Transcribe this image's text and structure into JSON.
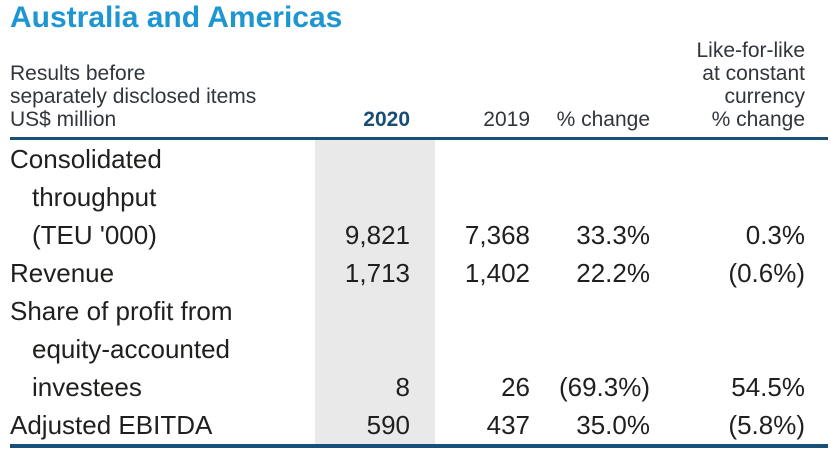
{
  "title": "Australia and Americas",
  "colors": {
    "title_blue": "#1e96d2",
    "rule_navy": "#1b4f74",
    "header_2020_navy": "#184e74",
    "highlight_gray": "#e9e9e9",
    "body_text": "#1f1f1d"
  },
  "table": {
    "header": {
      "left_lines": [
        "Results before",
        "separately disclosed items",
        "US$ million"
      ],
      "col_2020": "2020",
      "col_2019": "2019",
      "col_change": "% change",
      "lfl_lines": [
        "Like-for-like",
        "at constant",
        "currency",
        "% change"
      ]
    },
    "rows": [
      {
        "label_lines": [
          "Consolidated",
          "throughput",
          "(TEU '000)"
        ],
        "v2020": "9,821",
        "v2019": "7,368",
        "change": "33.3%",
        "lfl": "0.3%"
      },
      {
        "label_lines": [
          "Revenue"
        ],
        "v2020": "1,713",
        "v2019": "1,402",
        "change": "22.2%",
        "lfl": "(0.6%)"
      },
      {
        "label_lines": [
          "Share of profit from",
          "equity-accounted",
          "investees"
        ],
        "v2020": "8",
        "v2019": "26",
        "change": "(69.3%)",
        "lfl": "54.5%"
      },
      {
        "label_lines": [
          "Adjusted EBITDA"
        ],
        "v2020": "590",
        "v2019": "437",
        "change": "35.0%",
        "lfl": "(5.8%)"
      }
    ]
  }
}
